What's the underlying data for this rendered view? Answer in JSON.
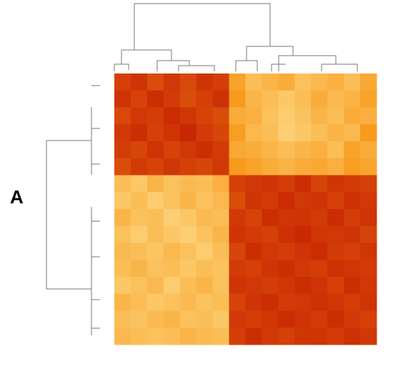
{
  "panel_label": "A",
  "chart_data": {
    "type": "heatmap",
    "colormap": [
      "#fff3b0",
      "#f89a1c",
      "#c41a00"
    ],
    "zlim": [
      0,
      1
    ],
    "values": [
      [
        0.85,
        0.9,
        0.8,
        0.88,
        0.82,
        0.9,
        0.86,
        0.45,
        0.3,
        0.35,
        0.4,
        0.28,
        0.33,
        0.38,
        0.3,
        0.42
      ],
      [
        0.9,
        0.84,
        0.92,
        0.87,
        0.8,
        0.85,
        0.91,
        0.5,
        0.35,
        0.3,
        0.25,
        0.3,
        0.4,
        0.32,
        0.36,
        0.45
      ],
      [
        0.82,
        0.88,
        0.86,
        0.93,
        0.89,
        0.84,
        0.8,
        0.4,
        0.38,
        0.28,
        0.22,
        0.27,
        0.35,
        0.3,
        0.4,
        0.38
      ],
      [
        0.88,
        0.92,
        0.85,
        0.9,
        0.95,
        0.87,
        0.83,
        0.48,
        0.33,
        0.3,
        0.2,
        0.25,
        0.3,
        0.36,
        0.33,
        0.5
      ],
      [
        0.86,
        0.83,
        0.9,
        0.84,
        0.88,
        0.92,
        0.87,
        0.42,
        0.4,
        0.35,
        0.3,
        0.34,
        0.38,
        0.3,
        0.45,
        0.4
      ],
      [
        0.8,
        0.87,
        0.84,
        0.89,
        0.85,
        0.83,
        0.88,
        0.5,
        0.45,
        0.4,
        0.36,
        0.4,
        0.42,
        0.38,
        0.48,
        0.44
      ],
      [
        0.3,
        0.25,
        0.35,
        0.28,
        0.32,
        0.3,
        0.38,
        0.85,
        0.88,
        0.9,
        0.86,
        0.92,
        0.84,
        0.89,
        0.87,
        0.85
      ],
      [
        0.25,
        0.3,
        0.22,
        0.27,
        0.35,
        0.28,
        0.33,
        0.8,
        0.9,
        0.87,
        0.93,
        0.88,
        0.9,
        0.85,
        0.91,
        0.88
      ],
      [
        0.35,
        0.28,
        0.3,
        0.2,
        0.25,
        0.32,
        0.3,
        0.88,
        0.84,
        0.92,
        0.89,
        0.9,
        0.87,
        0.93,
        0.86,
        0.9
      ],
      [
        0.28,
        0.22,
        0.3,
        0.25,
        0.2,
        0.27,
        0.35,
        0.9,
        0.87,
        0.85,
        0.91,
        0.94,
        0.89,
        0.88,
        0.9,
        0.84
      ],
      [
        0.32,
        0.3,
        0.26,
        0.33,
        0.28,
        0.22,
        0.3,
        0.83,
        0.92,
        0.88,
        0.86,
        0.9,
        0.93,
        0.87,
        0.85,
        0.89
      ],
      [
        0.3,
        0.35,
        0.28,
        0.3,
        0.25,
        0.3,
        0.27,
        0.87,
        0.85,
        0.9,
        0.92,
        0.88,
        0.86,
        0.91,
        0.89,
        0.87
      ],
      [
        0.25,
        0.28,
        0.33,
        0.22,
        0.3,
        0.35,
        0.28,
        0.9,
        0.88,
        0.86,
        0.89,
        0.93,
        0.9,
        0.85,
        0.92,
        0.88
      ],
      [
        0.35,
        0.3,
        0.25,
        0.28,
        0.32,
        0.27,
        0.3,
        0.84,
        0.9,
        0.92,
        0.87,
        0.88,
        0.91,
        0.89,
        0.86,
        0.9
      ],
      [
        0.3,
        0.27,
        0.32,
        0.35,
        0.28,
        0.3,
        0.25,
        0.88,
        0.86,
        0.89,
        0.93,
        0.9,
        0.87,
        0.92,
        0.88,
        0.85
      ],
      [
        0.33,
        0.3,
        0.28,
        0.3,
        0.35,
        0.32,
        0.3,
        0.86,
        0.92,
        0.88,
        0.85,
        0.89,
        0.9,
        0.87,
        0.91,
        0.88
      ]
    ]
  }
}
